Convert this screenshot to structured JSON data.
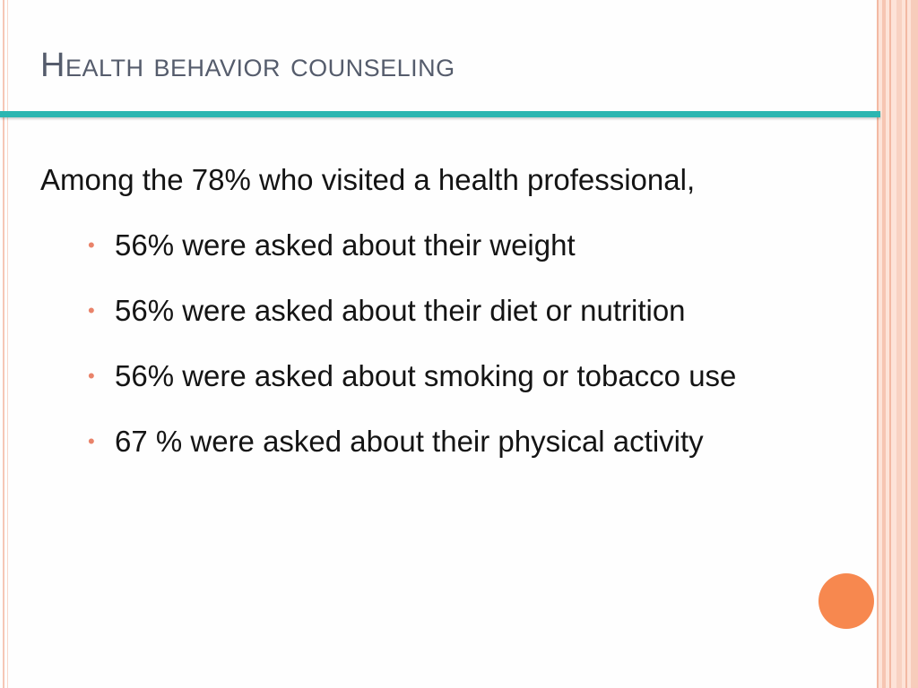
{
  "slide": {
    "title": "Health behavior counseling",
    "intro": "Among the 78% who visited a health professional,",
    "bullets": [
      {
        "text": "56% were asked about their weight"
      },
      {
        "text": "56% were asked about their diet or nutrition"
      },
      {
        "text": "56% were asked about smoking or tobacco use"
      },
      {
        "text": "67 % were asked about their physical activity"
      }
    ]
  },
  "colors": {
    "title_text": "#555c6c",
    "title_rule": "#2cb6b1",
    "bullet_marker": "#e9836a",
    "accent_circle": "#f7884f",
    "border_stripes": "#f6c5b2"
  }
}
